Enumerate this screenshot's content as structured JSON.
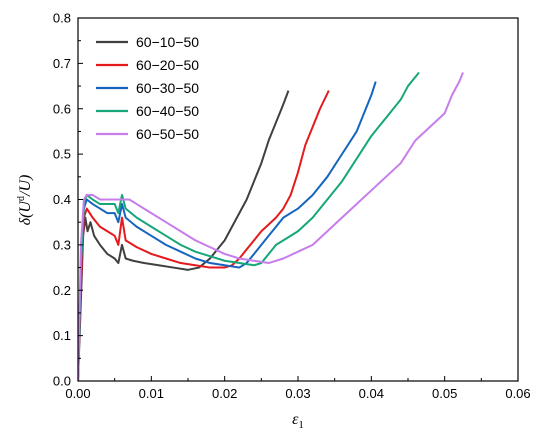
{
  "chart_data": {
    "type": "line",
    "title": "",
    "xlabel": "ε",
    "xlabel_sub": "1",
    "ylabel": "δ(U",
    "ylabel_sup": "d",
    "ylabel_tail": "/U)",
    "xlim": [
      0,
      0.06
    ],
    "ylim": [
      0,
      0.8
    ],
    "x_ticks": [
      0,
      0.01,
      0.02,
      0.03,
      0.04,
      0.05,
      0.06
    ],
    "x_tick_labels": [
      "0.00",
      "0.01",
      "0.02",
      "0.03",
      "0.04",
      "0.05",
      "0.06"
    ],
    "y_ticks": [
      0,
      0.1,
      0.2,
      0.3,
      0.4,
      0.5,
      0.6,
      0.7,
      0.8
    ],
    "y_tick_labels": [
      "0.0",
      "0.1",
      "0.2",
      "0.3",
      "0.4",
      "0.5",
      "0.6",
      "0.7",
      "0.8"
    ],
    "grid": false,
    "legend_position": "top-left",
    "series": [
      {
        "name": "60−10−50",
        "color": "#404040",
        "x": [
          0,
          0.0004,
          0.0007,
          0.001,
          0.0013,
          0.0017,
          0.0022,
          0.003,
          0.004,
          0.005,
          0.0055,
          0.006,
          0.0065,
          0.0075,
          0.009,
          0.011,
          0.013,
          0.015,
          0.0165,
          0.018,
          0.019,
          0.02,
          0.021,
          0.022,
          0.023,
          0.024,
          0.025,
          0.026,
          0.027,
          0.028,
          0.0287
        ],
        "y": [
          0,
          0.18,
          0.32,
          0.36,
          0.33,
          0.35,
          0.32,
          0.3,
          0.28,
          0.27,
          0.26,
          0.3,
          0.27,
          0.265,
          0.26,
          0.255,
          0.25,
          0.245,
          0.25,
          0.27,
          0.29,
          0.31,
          0.34,
          0.37,
          0.4,
          0.44,
          0.48,
          0.53,
          0.57,
          0.61,
          0.64
        ]
      },
      {
        "name": "60−20−50",
        "color": "#e41a1c",
        "x": [
          0,
          0.0004,
          0.0008,
          0.0012,
          0.002,
          0.003,
          0.004,
          0.005,
          0.0055,
          0.006,
          0.0065,
          0.008,
          0.01,
          0.012,
          0.014,
          0.016,
          0.018,
          0.02,
          0.021,
          0.022,
          0.023,
          0.024,
          0.025,
          0.026,
          0.027,
          0.028,
          0.029,
          0.03,
          0.031,
          0.032,
          0.033,
          0.0342
        ],
        "y": [
          0,
          0.22,
          0.36,
          0.38,
          0.36,
          0.34,
          0.33,
          0.32,
          0.3,
          0.36,
          0.31,
          0.295,
          0.28,
          0.27,
          0.26,
          0.255,
          0.25,
          0.25,
          0.255,
          0.27,
          0.29,
          0.31,
          0.33,
          0.345,
          0.36,
          0.38,
          0.41,
          0.46,
          0.52,
          0.56,
          0.6,
          0.64
        ]
      },
      {
        "name": "60−30−50",
        "color": "#1565c0",
        "x": [
          0,
          0.0004,
          0.0008,
          0.0012,
          0.002,
          0.003,
          0.004,
          0.005,
          0.0055,
          0.006,
          0.0065,
          0.008,
          0.01,
          0.012,
          0.014,
          0.016,
          0.018,
          0.02,
          0.022,
          0.023,
          0.024,
          0.025,
          0.026,
          0.027,
          0.028,
          0.03,
          0.032,
          0.034,
          0.036,
          0.038,
          0.039,
          0.04,
          0.0406
        ],
        "y": [
          0,
          0.25,
          0.38,
          0.4,
          0.39,
          0.38,
          0.37,
          0.37,
          0.35,
          0.39,
          0.36,
          0.34,
          0.32,
          0.3,
          0.285,
          0.27,
          0.26,
          0.255,
          0.25,
          0.26,
          0.28,
          0.3,
          0.32,
          0.34,
          0.36,
          0.38,
          0.41,
          0.45,
          0.5,
          0.55,
          0.59,
          0.63,
          0.66
        ]
      },
      {
        "name": "60−40−50",
        "color": "#17a67a",
        "x": [
          0,
          0.0004,
          0.0008,
          0.0012,
          0.002,
          0.003,
          0.004,
          0.005,
          0.0055,
          0.006,
          0.0065,
          0.008,
          0.01,
          0.012,
          0.014,
          0.016,
          0.018,
          0.02,
          0.022,
          0.024,
          0.025,
          0.026,
          0.027,
          0.028,
          0.03,
          0.032,
          0.034,
          0.036,
          0.038,
          0.04,
          0.042,
          0.044,
          0.045,
          0.046,
          0.0465
        ],
        "y": [
          0,
          0.26,
          0.39,
          0.41,
          0.4,
          0.39,
          0.39,
          0.39,
          0.37,
          0.41,
          0.38,
          0.36,
          0.34,
          0.32,
          0.3,
          0.285,
          0.275,
          0.265,
          0.26,
          0.255,
          0.26,
          0.28,
          0.3,
          0.31,
          0.33,
          0.36,
          0.4,
          0.44,
          0.49,
          0.54,
          0.58,
          0.62,
          0.65,
          0.67,
          0.68
        ]
      },
      {
        "name": "60−50−50",
        "color": "#c77dea",
        "x": [
          0,
          0.0004,
          0.0008,
          0.0012,
          0.002,
          0.003,
          0.004,
          0.005,
          0.006,
          0.007,
          0.008,
          0.01,
          0.012,
          0.014,
          0.016,
          0.018,
          0.02,
          0.022,
          0.024,
          0.026,
          0.028,
          0.03,
          0.032,
          0.034,
          0.036,
          0.038,
          0.04,
          0.042,
          0.044,
          0.046,
          0.048,
          0.05,
          0.051,
          0.052,
          0.0525
        ],
        "y": [
          0,
          0.3,
          0.4,
          0.41,
          0.41,
          0.4,
          0.4,
          0.4,
          0.4,
          0.4,
          0.39,
          0.37,
          0.35,
          0.33,
          0.31,
          0.295,
          0.28,
          0.27,
          0.265,
          0.26,
          0.27,
          0.285,
          0.3,
          0.33,
          0.36,
          0.39,
          0.42,
          0.45,
          0.48,
          0.53,
          0.56,
          0.59,
          0.63,
          0.66,
          0.68
        ]
      }
    ]
  }
}
